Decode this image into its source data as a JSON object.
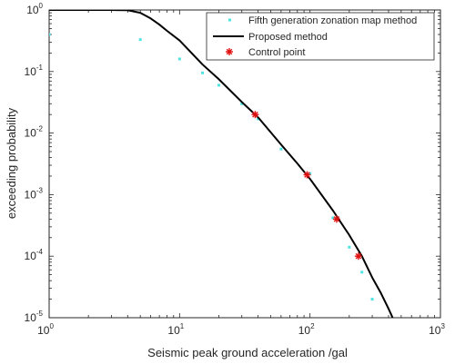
{
  "chart_data": {
    "type": "line",
    "title": "",
    "xlabel": "Seismic peak ground acceleration /gal",
    "ylabel": "exceeding probability",
    "xscale": "log",
    "yscale": "log",
    "xlim": [
      1,
      1000
    ],
    "ylim": [
      1e-05,
      1
    ],
    "grid": false,
    "legend_position": "top-right",
    "x_ticks": [
      {
        "value": 1,
        "base": "10",
        "exp": "0"
      },
      {
        "value": 10,
        "base": "10",
        "exp": "1"
      },
      {
        "value": 100,
        "base": "10",
        "exp": "2"
      },
      {
        "value": 1000,
        "base": "10",
        "exp": "3"
      }
    ],
    "y_ticks": [
      {
        "value": 1,
        "base": "10",
        "exp": "0"
      },
      {
        "value": 0.1,
        "base": "10",
        "exp": "-1"
      },
      {
        "value": 0.01,
        "base": "10",
        "exp": "-2"
      },
      {
        "value": 0.001,
        "base": "10",
        "exp": "-3"
      },
      {
        "value": 0.0001,
        "base": "10",
        "exp": "-4"
      },
      {
        "value": 1e-05,
        "base": "10",
        "exp": "-5"
      }
    ],
    "series": [
      {
        "name": "Fifth generation zonation map method",
        "style": "scatter-dot",
        "color": "#4fe3e3",
        "x": [
          1,
          5,
          10,
          15,
          20,
          30,
          40,
          60,
          100,
          150,
          200,
          250,
          300
        ],
        "y": [
          0.4,
          0.33,
          0.16,
          0.095,
          0.06,
          0.03,
          0.017,
          0.0055,
          0.0022,
          0.00042,
          0.00014,
          5.5e-05,
          2e-05
        ]
      },
      {
        "name": "Proposed method",
        "style": "line",
        "color": "#000000",
        "x": [
          1,
          2,
          3,
          4,
          5,
          6,
          7,
          8,
          10,
          15,
          20,
          30,
          40,
          60,
          80,
          100,
          150,
          200,
          250,
          300,
          350,
          400,
          430
        ],
        "y": [
          1,
          1,
          1,
          0.99,
          0.9,
          0.73,
          0.58,
          0.46,
          0.32,
          0.13,
          0.075,
          0.032,
          0.018,
          0.0065,
          0.0032,
          0.0018,
          0.00055,
          0.00022,
          0.0001,
          4.5e-05,
          2.5e-05,
          1.4e-05,
          1e-05
        ]
      },
      {
        "name": "Control point",
        "style": "star-marker",
        "color": "#e01010",
        "x": [
          38,
          95,
          160,
          235
        ],
        "y": [
          0.02,
          0.0021,
          0.0004,
          0.0001
        ]
      }
    ]
  }
}
